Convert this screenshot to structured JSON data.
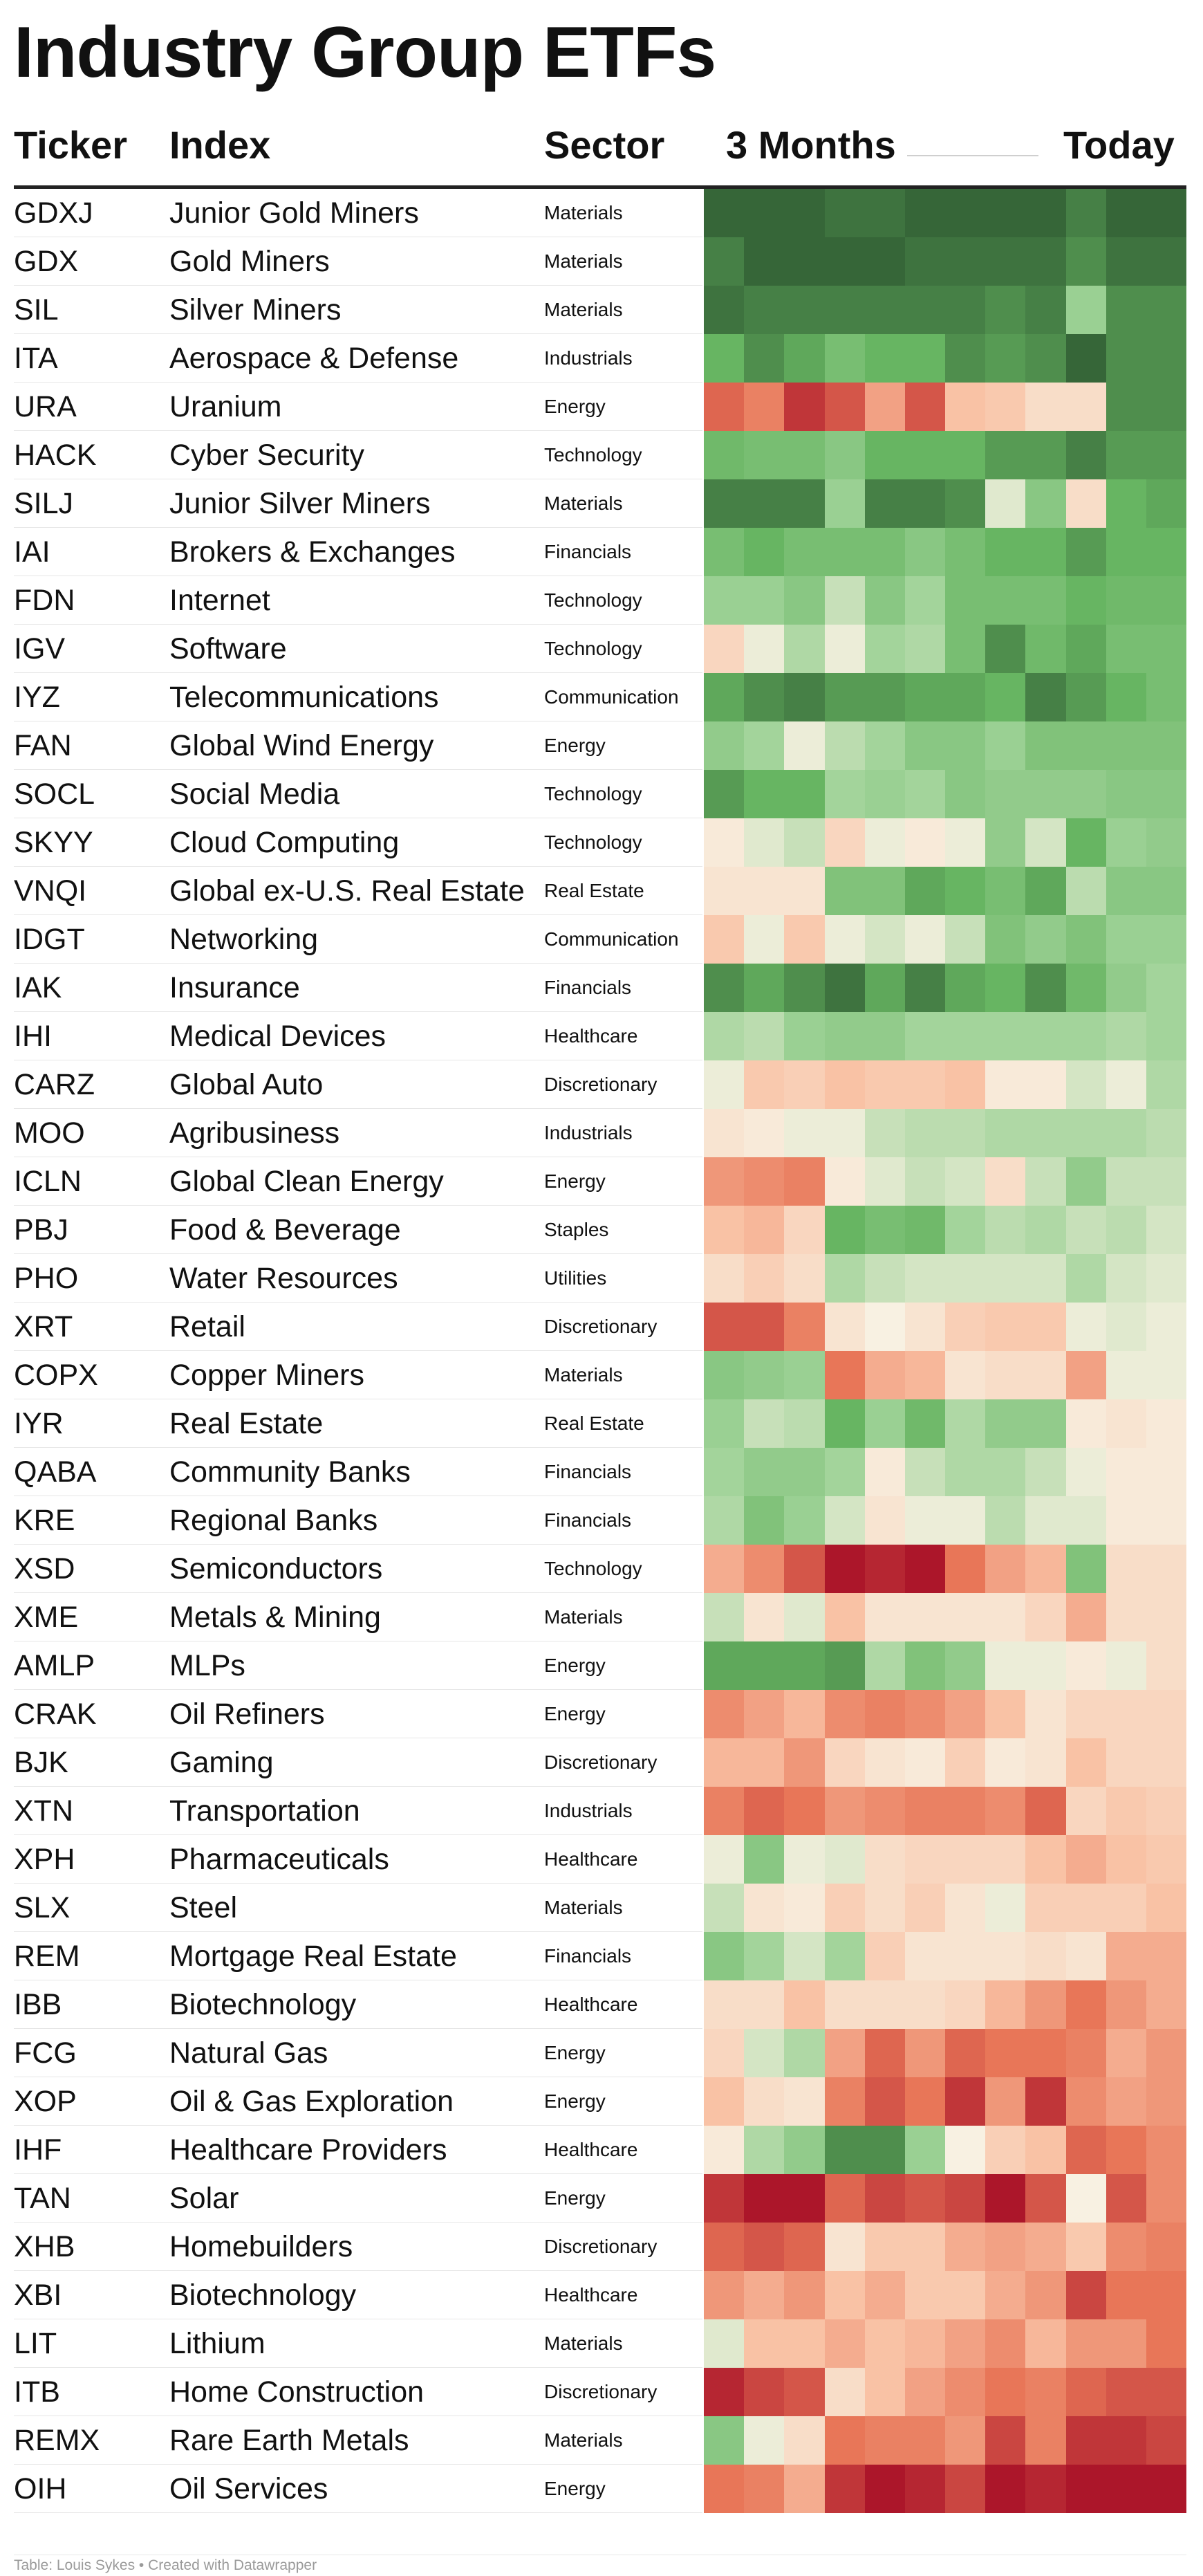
{
  "title": "Industry Group ETFs",
  "headers": {
    "ticker": "Ticker",
    "index": "Index",
    "sector": "Sector",
    "period_start": "3 Months",
    "period_end": "Today"
  },
  "source": "Table: Louis Sykes • Created with Datawrapper",
  "chart_data": {
    "type": "heatmap",
    "title": "Industry Group ETFs",
    "colorscale": "red (negative) → cream (neutral) → green (positive)",
    "columns": 12,
    "x_start_label": "3 Months",
    "x_end_label": "Today",
    "rows": [
      {
        "ticker": "GDXJ",
        "index": "Junior Gold Miners",
        "sector": "Materials",
        "values": [
          1.0,
          1.0,
          1.0,
          0.95,
          0.95,
          1.0,
          1.0,
          1.0,
          1.0,
          0.9,
          1.0,
          1.0
        ]
      },
      {
        "ticker": "GDX",
        "index": "Gold Miners",
        "sector": "Materials",
        "values": [
          0.9,
          1.0,
          1.0,
          1.0,
          1.0,
          0.95,
          0.95,
          0.95,
          0.95,
          0.85,
          0.95,
          0.95
        ]
      },
      {
        "ticker": "SIL",
        "index": "Silver Miners",
        "sector": "Materials",
        "values": [
          0.95,
          0.9,
          0.9,
          0.9,
          0.9,
          0.9,
          0.9,
          0.85,
          0.9,
          0.4,
          0.85,
          0.85
        ]
      },
      {
        "ticker": "ITA",
        "index": "Aerospace & Defense",
        "sector": "Industrials",
        "values": [
          0.7,
          0.85,
          0.75,
          0.6,
          0.7,
          0.7,
          0.85,
          0.8,
          0.85,
          1.0,
          0.85,
          0.85
        ]
      },
      {
        "ticker": "URA",
        "index": "Uranium",
        "sector": "Energy",
        "values": [
          -0.75,
          -0.65,
          -0.9,
          -0.8,
          -0.5,
          -0.8,
          -0.35,
          -0.3,
          -0.15,
          -0.15,
          0.85,
          0.85
        ]
      },
      {
        "ticker": "HACK",
        "index": "Cyber Security",
        "sector": "Technology",
        "values": [
          0.65,
          0.6,
          0.6,
          0.5,
          0.7,
          0.7,
          0.7,
          0.8,
          0.8,
          0.9,
          0.8,
          0.8
        ]
      },
      {
        "ticker": "SILJ",
        "index": "Junior Silver Miners",
        "sector": "Materials",
        "values": [
          0.9,
          0.9,
          0.9,
          0.4,
          0.9,
          0.9,
          0.85,
          0.1,
          0.5,
          -0.15,
          0.7,
          0.75
        ]
      },
      {
        "ticker": "IAI",
        "index": "Brokers & Exchanges",
        "sector": "Financials",
        "values": [
          0.6,
          0.7,
          0.6,
          0.6,
          0.6,
          0.5,
          0.6,
          0.7,
          0.7,
          0.8,
          0.7,
          0.7
        ]
      },
      {
        "ticker": "FDN",
        "index": "Internet",
        "sector": "Technology",
        "values": [
          0.4,
          0.4,
          0.5,
          0.2,
          0.5,
          0.35,
          0.6,
          0.6,
          0.6,
          0.7,
          0.65,
          0.65
        ]
      },
      {
        "ticker": "IGV",
        "index": "Software",
        "sector": "Technology",
        "values": [
          -0.2,
          0.05,
          0.3,
          0.05,
          0.35,
          0.3,
          0.6,
          0.85,
          0.65,
          0.75,
          0.6,
          0.6
        ]
      },
      {
        "ticker": "IYZ",
        "index": "Telecommunications",
        "sector": "Communication",
        "values": [
          0.75,
          0.85,
          0.9,
          0.8,
          0.8,
          0.75,
          0.75,
          0.7,
          0.9,
          0.8,
          0.7,
          0.6
        ]
      },
      {
        "ticker": "FAN",
        "index": "Global Wind Energy",
        "sector": "Energy",
        "values": [
          0.45,
          0.35,
          0.05,
          0.25,
          0.35,
          0.5,
          0.5,
          0.4,
          0.55,
          0.55,
          0.55,
          0.55
        ]
      },
      {
        "ticker": "SOCL",
        "index": "Social Media",
        "sector": "Technology",
        "values": [
          0.8,
          0.7,
          0.7,
          0.35,
          0.4,
          0.35,
          0.5,
          0.45,
          0.45,
          0.45,
          0.5,
          0.5
        ]
      },
      {
        "ticker": "SKYY",
        "index": "Cloud Computing",
        "sector": "Technology",
        "values": [
          -0.05,
          0.1,
          0.2,
          -0.2,
          0.05,
          -0.05,
          0.05,
          0.45,
          0.15,
          0.7,
          0.4,
          0.45
        ]
      },
      {
        "ticker": "VNQI",
        "index": "Global ex-U.S. Real Estate",
        "sector": "Real Estate",
        "values": [
          -0.1,
          -0.1,
          -0.1,
          0.55,
          0.55,
          0.75,
          0.7,
          0.6,
          0.75,
          0.25,
          0.5,
          0.5
        ]
      },
      {
        "ticker": "IDGT",
        "index": "Networking",
        "sector": "Communication",
        "values": [
          -0.3,
          0.05,
          -0.3,
          0.05,
          0.15,
          0.05,
          0.2,
          0.55,
          0.45,
          0.55,
          0.4,
          0.4
        ]
      },
      {
        "ticker": "IAK",
        "index": "Insurance",
        "sector": "Financials",
        "values": [
          0.85,
          0.75,
          0.85,
          0.95,
          0.75,
          0.9,
          0.75,
          0.7,
          0.85,
          0.65,
          0.45,
          0.35
        ]
      },
      {
        "ticker": "IHI",
        "index": "Medical Devices",
        "sector": "Healthcare",
        "values": [
          0.3,
          0.25,
          0.4,
          0.45,
          0.45,
          0.35,
          0.35,
          0.35,
          0.35,
          0.35,
          0.3,
          0.35
        ]
      },
      {
        "ticker": "CARZ",
        "index": "Global Auto",
        "sector": "Discretionary",
        "values": [
          0.05,
          -0.3,
          -0.25,
          -0.35,
          -0.3,
          -0.3,
          -0.35,
          -0.05,
          -0.05,
          0.15,
          0.05,
          0.3
        ]
      },
      {
        "ticker": "MOO",
        "index": "Agribusiness",
        "sector": "Industrials",
        "values": [
          -0.1,
          -0.05,
          0.05,
          0.05,
          0.2,
          0.25,
          0.25,
          0.3,
          0.3,
          0.3,
          0.3,
          0.25
        ]
      },
      {
        "ticker": "ICLN",
        "index": "Global Clean Energy",
        "sector": "Energy",
        "values": [
          -0.55,
          -0.6,
          -0.65,
          -0.05,
          0.1,
          0.2,
          0.15,
          -0.15,
          0.2,
          0.45,
          0.2,
          0.2
        ]
      },
      {
        "ticker": "PBJ",
        "index": "Food & Beverage",
        "sector": "Staples",
        "values": [
          -0.35,
          -0.4,
          -0.2,
          0.7,
          0.6,
          0.65,
          0.35,
          0.25,
          0.3,
          0.2,
          0.25,
          0.15
        ]
      },
      {
        "ticker": "PHO",
        "index": "Water Resources",
        "sector": "Utilities",
        "values": [
          -0.15,
          -0.25,
          -0.15,
          0.3,
          0.2,
          0.15,
          0.15,
          0.15,
          0.15,
          0.3,
          0.15,
          0.1
        ]
      },
      {
        "ticker": "XRT",
        "index": "Retail",
        "sector": "Discretionary",
        "values": [
          -0.8,
          -0.8,
          -0.65,
          -0.1,
          0.0,
          -0.1,
          -0.25,
          -0.3,
          -0.3,
          0.05,
          0.1,
          0.05
        ]
      },
      {
        "ticker": "COPX",
        "index": "Copper Miners",
        "sector": "Materials",
        "values": [
          0.5,
          0.45,
          0.4,
          -0.7,
          -0.45,
          -0.4,
          -0.1,
          -0.15,
          -0.15,
          -0.5,
          0.05,
          0.05
        ]
      },
      {
        "ticker": "IYR",
        "index": "Real Estate",
        "sector": "Real Estate",
        "values": [
          0.4,
          0.2,
          0.25,
          0.7,
          0.4,
          0.65,
          0.3,
          0.45,
          0.45,
          -0.05,
          -0.1,
          -0.05
        ]
      },
      {
        "ticker": "QABA",
        "index": "Community Banks",
        "sector": "Financials",
        "values": [
          0.35,
          0.45,
          0.45,
          0.35,
          -0.05,
          0.2,
          0.3,
          0.3,
          0.2,
          0.05,
          -0.05,
          -0.05
        ]
      },
      {
        "ticker": "KRE",
        "index": "Regional Banks",
        "sector": "Financials",
        "values": [
          0.3,
          0.55,
          0.4,
          0.15,
          -0.1,
          0.05,
          0.05,
          0.25,
          0.1,
          0.1,
          -0.05,
          -0.05
        ]
      },
      {
        "ticker": "XSD",
        "index": "Semiconductors",
        "sector": "Technology",
        "values": [
          -0.45,
          -0.6,
          -0.8,
          -1.0,
          -0.95,
          -1.0,
          -0.7,
          -0.5,
          -0.4,
          0.55,
          -0.15,
          -0.15
        ]
      },
      {
        "ticker": "XME",
        "index": "Metals & Mining",
        "sector": "Materials",
        "values": [
          0.2,
          -0.1,
          0.1,
          -0.35,
          -0.1,
          -0.1,
          -0.1,
          -0.1,
          -0.2,
          -0.45,
          -0.15,
          -0.15
        ]
      },
      {
        "ticker": "AMLP",
        "index": "MLPs",
        "sector": "Energy",
        "values": [
          0.75,
          0.75,
          0.75,
          0.8,
          0.3,
          0.55,
          0.45,
          0.05,
          0.05,
          -0.05,
          0.05,
          -0.15
        ]
      },
      {
        "ticker": "CRAK",
        "index": "Oil Refiners",
        "sector": "Energy",
        "values": [
          -0.6,
          -0.5,
          -0.4,
          -0.6,
          -0.65,
          -0.6,
          -0.5,
          -0.35,
          -0.1,
          -0.2,
          -0.2,
          -0.2
        ]
      },
      {
        "ticker": "BJK",
        "index": "Gaming",
        "sector": "Discretionary",
        "values": [
          -0.4,
          -0.4,
          -0.55,
          -0.2,
          -0.1,
          -0.05,
          -0.25,
          -0.05,
          -0.1,
          -0.35,
          -0.2,
          -0.2
        ]
      },
      {
        "ticker": "XTN",
        "index": "Transportation",
        "sector": "Industrials",
        "values": [
          -0.65,
          -0.75,
          -0.7,
          -0.55,
          -0.6,
          -0.65,
          -0.65,
          -0.6,
          -0.75,
          -0.2,
          -0.3,
          -0.25
        ]
      },
      {
        "ticker": "XPH",
        "index": "Pharmaceuticals",
        "sector": "Healthcare",
        "values": [
          0.05,
          0.5,
          0.05,
          0.1,
          -0.15,
          -0.2,
          -0.2,
          -0.2,
          -0.35,
          -0.45,
          -0.35,
          -0.3
        ]
      },
      {
        "ticker": "SLX",
        "index": "Steel",
        "sector": "Materials",
        "values": [
          0.2,
          -0.1,
          -0.05,
          -0.25,
          -0.15,
          -0.25,
          -0.1,
          0.05,
          -0.25,
          -0.25,
          -0.25,
          -0.35
        ]
      },
      {
        "ticker": "REM",
        "index": "Mortgage Real Estate",
        "sector": "Financials",
        "values": [
          0.5,
          0.35,
          0.15,
          0.35,
          -0.25,
          -0.1,
          -0.1,
          -0.1,
          -0.15,
          -0.1,
          -0.45,
          -0.45
        ]
      },
      {
        "ticker": "IBB",
        "index": "Biotechnology",
        "sector": "Healthcare",
        "values": [
          -0.15,
          -0.15,
          -0.35,
          -0.15,
          -0.15,
          -0.15,
          -0.2,
          -0.4,
          -0.55,
          -0.7,
          -0.55,
          -0.45
        ]
      },
      {
        "ticker": "FCG",
        "index": "Natural Gas",
        "sector": "Energy",
        "values": [
          -0.2,
          0.15,
          0.3,
          -0.5,
          -0.75,
          -0.55,
          -0.75,
          -0.7,
          -0.7,
          -0.65,
          -0.45,
          -0.55
        ]
      },
      {
        "ticker": "XOP",
        "index": "Oil & Gas Exploration",
        "sector": "Energy",
        "values": [
          -0.35,
          -0.15,
          -0.1,
          -0.65,
          -0.8,
          -0.7,
          -0.9,
          -0.55,
          -0.9,
          -0.6,
          -0.5,
          -0.55
        ]
      },
      {
        "ticker": "IHF",
        "index": "Healthcare Providers",
        "sector": "Healthcare",
        "values": [
          -0.05,
          0.3,
          0.45,
          0.85,
          0.85,
          0.4,
          0.0,
          -0.25,
          -0.35,
          -0.75,
          -0.7,
          -0.6
        ]
      },
      {
        "ticker": "TAN",
        "index": "Solar",
        "sector": "Energy",
        "values": [
          -0.9,
          -1.0,
          -1.0,
          -0.75,
          -0.85,
          -0.8,
          -0.85,
          -1.0,
          -0.8,
          0.0,
          -0.8,
          -0.6
        ]
      },
      {
        "ticker": "XHB",
        "index": "Homebuilders",
        "sector": "Discretionary",
        "values": [
          -0.75,
          -0.8,
          -0.75,
          -0.1,
          -0.3,
          -0.3,
          -0.45,
          -0.5,
          -0.45,
          -0.3,
          -0.6,
          -0.65
        ]
      },
      {
        "ticker": "XBI",
        "index": "Biotechnology",
        "sector": "Healthcare",
        "values": [
          -0.55,
          -0.45,
          -0.55,
          -0.35,
          -0.45,
          -0.3,
          -0.3,
          -0.45,
          -0.55,
          -0.85,
          -0.7,
          -0.7
        ]
      },
      {
        "ticker": "LIT",
        "index": "Lithium",
        "sector": "Materials",
        "values": [
          0.1,
          -0.35,
          -0.35,
          -0.45,
          -0.35,
          -0.4,
          -0.5,
          -0.6,
          -0.4,
          -0.55,
          -0.55,
          -0.7
        ]
      },
      {
        "ticker": "ITB",
        "index": "Home Construction",
        "sector": "Discretionary",
        "values": [
          -0.95,
          -0.85,
          -0.8,
          -0.15,
          -0.35,
          -0.5,
          -0.6,
          -0.7,
          -0.65,
          -0.75,
          -0.8,
          -0.8
        ]
      },
      {
        "ticker": "REMX",
        "index": "Rare Earth Metals",
        "sector": "Materials",
        "values": [
          0.5,
          0.05,
          -0.15,
          -0.7,
          -0.65,
          -0.65,
          -0.55,
          -0.85,
          -0.65,
          -0.9,
          -0.9,
          -0.85
        ]
      },
      {
        "ticker": "OIH",
        "index": "Oil Services",
        "sector": "Energy",
        "values": [
          -0.7,
          -0.65,
          -0.45,
          -0.9,
          -1.0,
          -0.95,
          -0.85,
          -1.0,
          -0.95,
          -1.0,
          -1.0,
          -1.0
        ]
      }
    ]
  }
}
